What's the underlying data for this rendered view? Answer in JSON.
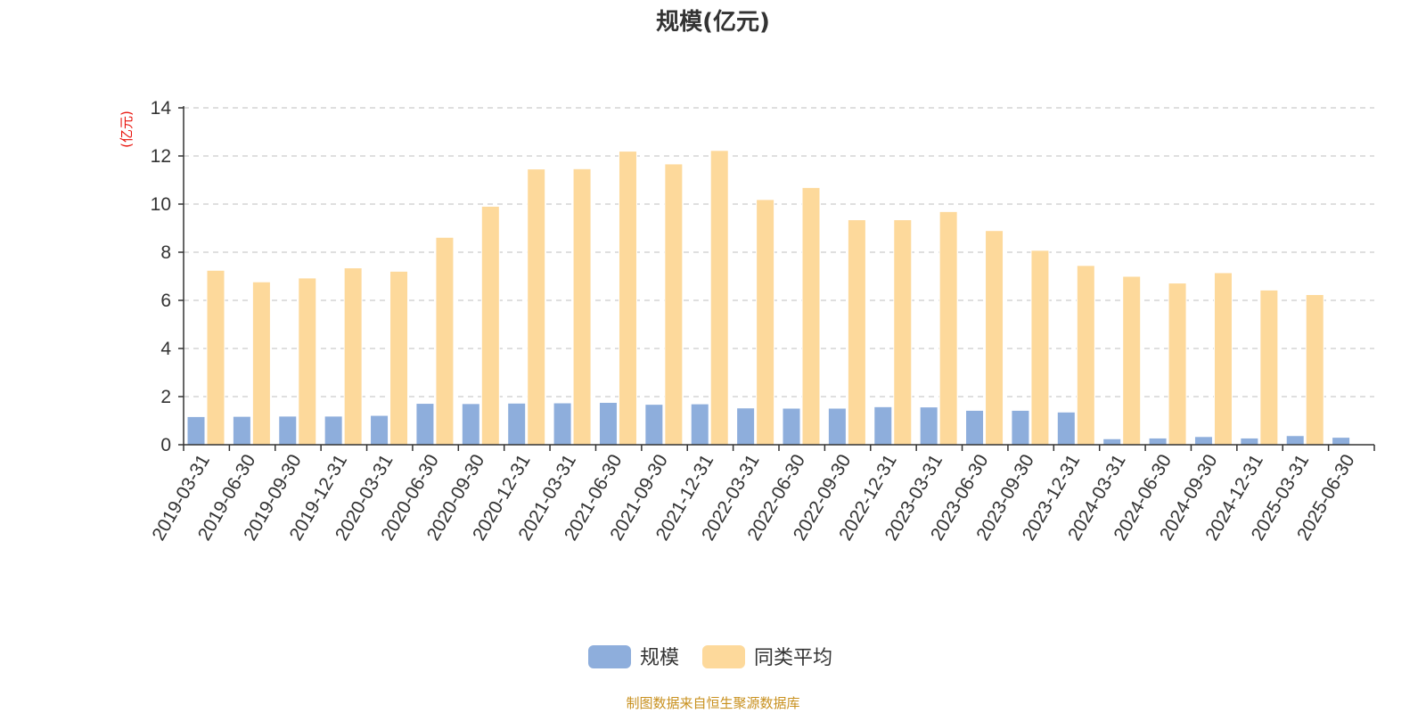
{
  "colors": {
    "series_0": "#8eaedc",
    "series_1": "#fdd99b",
    "axis": "#333333",
    "grid": "#cccccc",
    "unit": "#e8120b",
    "source": "#c8901e"
  },
  "chart_data": {
    "type": "bar",
    "title": "规模(亿元)",
    "unit_label": "(亿元)",
    "xlabel": "",
    "ylabel": "",
    "ylim": [
      0,
      14
    ],
    "yticks": [
      0,
      2,
      4,
      6,
      8,
      10,
      12,
      14
    ],
    "grid": true,
    "legend_position": "bottom-center",
    "categories": [
      "2019-03-31",
      "2019-06-30",
      "2019-09-30",
      "2019-12-31",
      "2020-03-31",
      "2020-06-30",
      "2020-09-30",
      "2020-12-31",
      "2021-03-31",
      "2021-06-30",
      "2021-09-30",
      "2021-12-31",
      "2022-03-31",
      "2022-06-30",
      "2022-09-30",
      "2022-12-31",
      "2023-03-31",
      "2023-06-30",
      "2023-09-30",
      "2023-12-31",
      "2024-03-31",
      "2024-06-30",
      "2024-09-30",
      "2024-12-31",
      "2025-03-31",
      "2025-06-30"
    ],
    "series": [
      {
        "name": "规模",
        "values": [
          1.17,
          1.18,
          1.19,
          1.19,
          1.22,
          1.72,
          1.71,
          1.73,
          1.74,
          1.76,
          1.68,
          1.7,
          1.53,
          1.52,
          1.52,
          1.58,
          1.57,
          1.43,
          1.43,
          1.36,
          0.25,
          0.28,
          0.34,
          0.28,
          0.38,
          0.31
        ]
      },
      {
        "name": "同类平均",
        "values": [
          7.25,
          6.77,
          6.93,
          7.35,
          7.21,
          8.62,
          9.91,
          11.46,
          11.47,
          12.2,
          11.67,
          12.23,
          10.19,
          10.69,
          9.35,
          9.35,
          9.69,
          8.9,
          8.08,
          7.45,
          7.0,
          6.72,
          7.15,
          6.43,
          6.24,
          null
        ]
      }
    ]
  },
  "footer": {
    "source": "制图数据来自恒生聚源数据库"
  }
}
